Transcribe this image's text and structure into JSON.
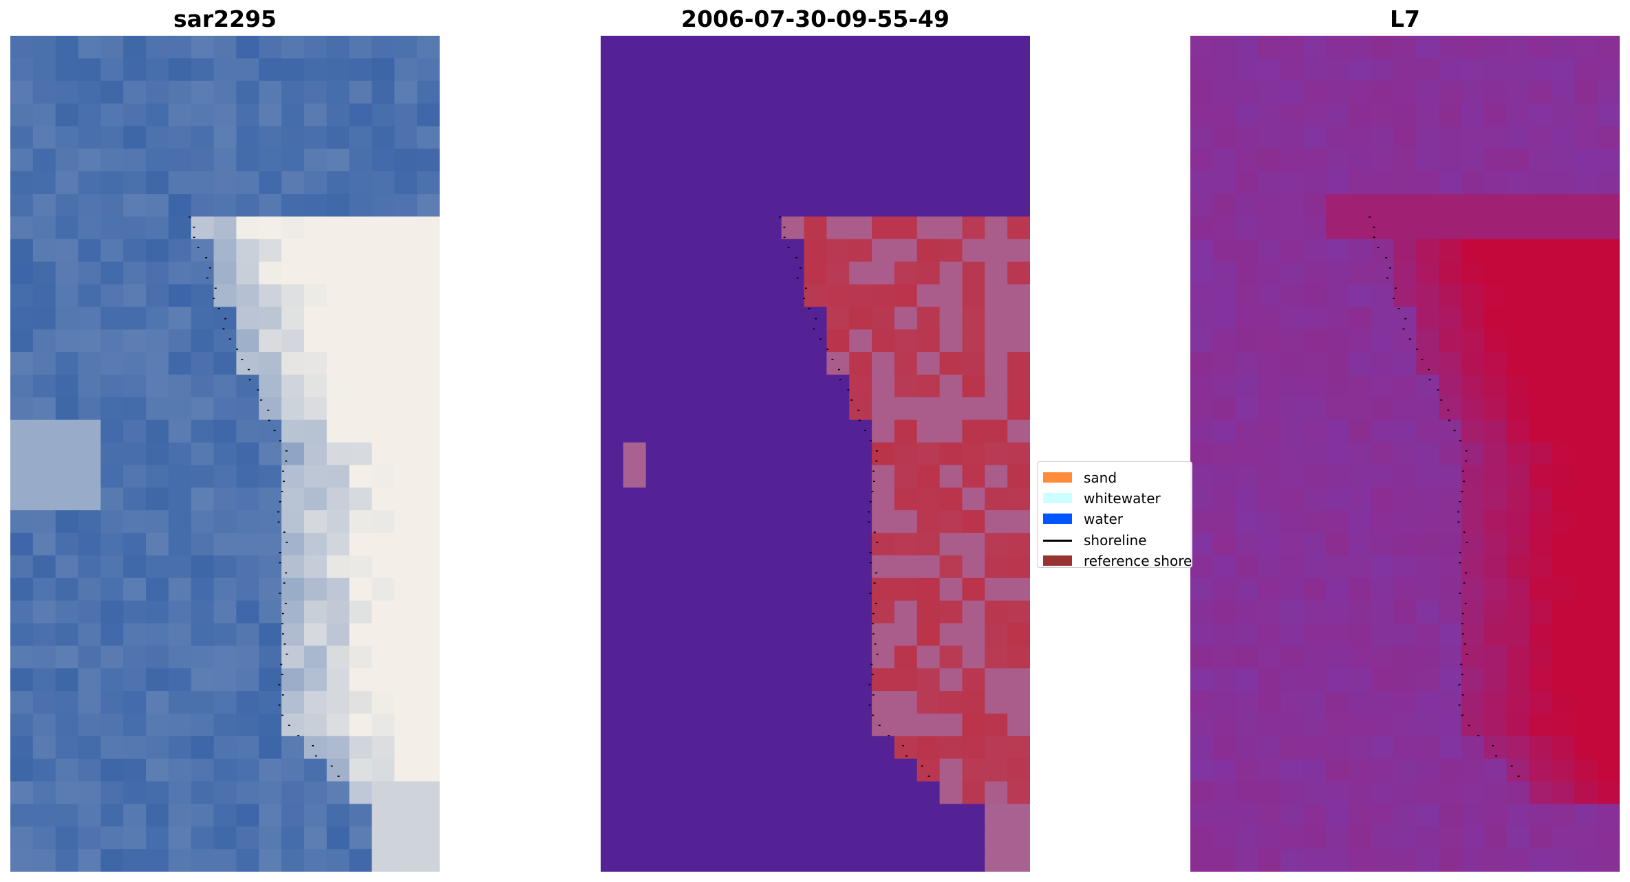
{
  "panels": [
    {
      "title": "sar2295"
    },
    {
      "title": "2006-07-30-09-55-49"
    },
    {
      "title": "L7"
    }
  ],
  "legend": {
    "items": [
      {
        "label": "sand",
        "color": "#ff8c3a",
        "kind": "patch"
      },
      {
        "label": "whitewater",
        "color": "#ccffff",
        "kind": "patch"
      },
      {
        "label": "water",
        "color": "#0055ff",
        "kind": "patch"
      },
      {
        "label": "shoreline",
        "color": "#000000",
        "kind": "line"
      },
      {
        "label": "reference shoreline",
        "color": "#993333",
        "kind": "patch"
      }
    ]
  },
  "colors": {
    "rgb_water": "#3d66a8",
    "rgb_foam": "#f3efe8",
    "class_background": "#552296",
    "class_sand": "#bb3349",
    "class_mixed": "#a86292",
    "index_low": "#8234a0",
    "index_high": "#c4083c"
  }
}
